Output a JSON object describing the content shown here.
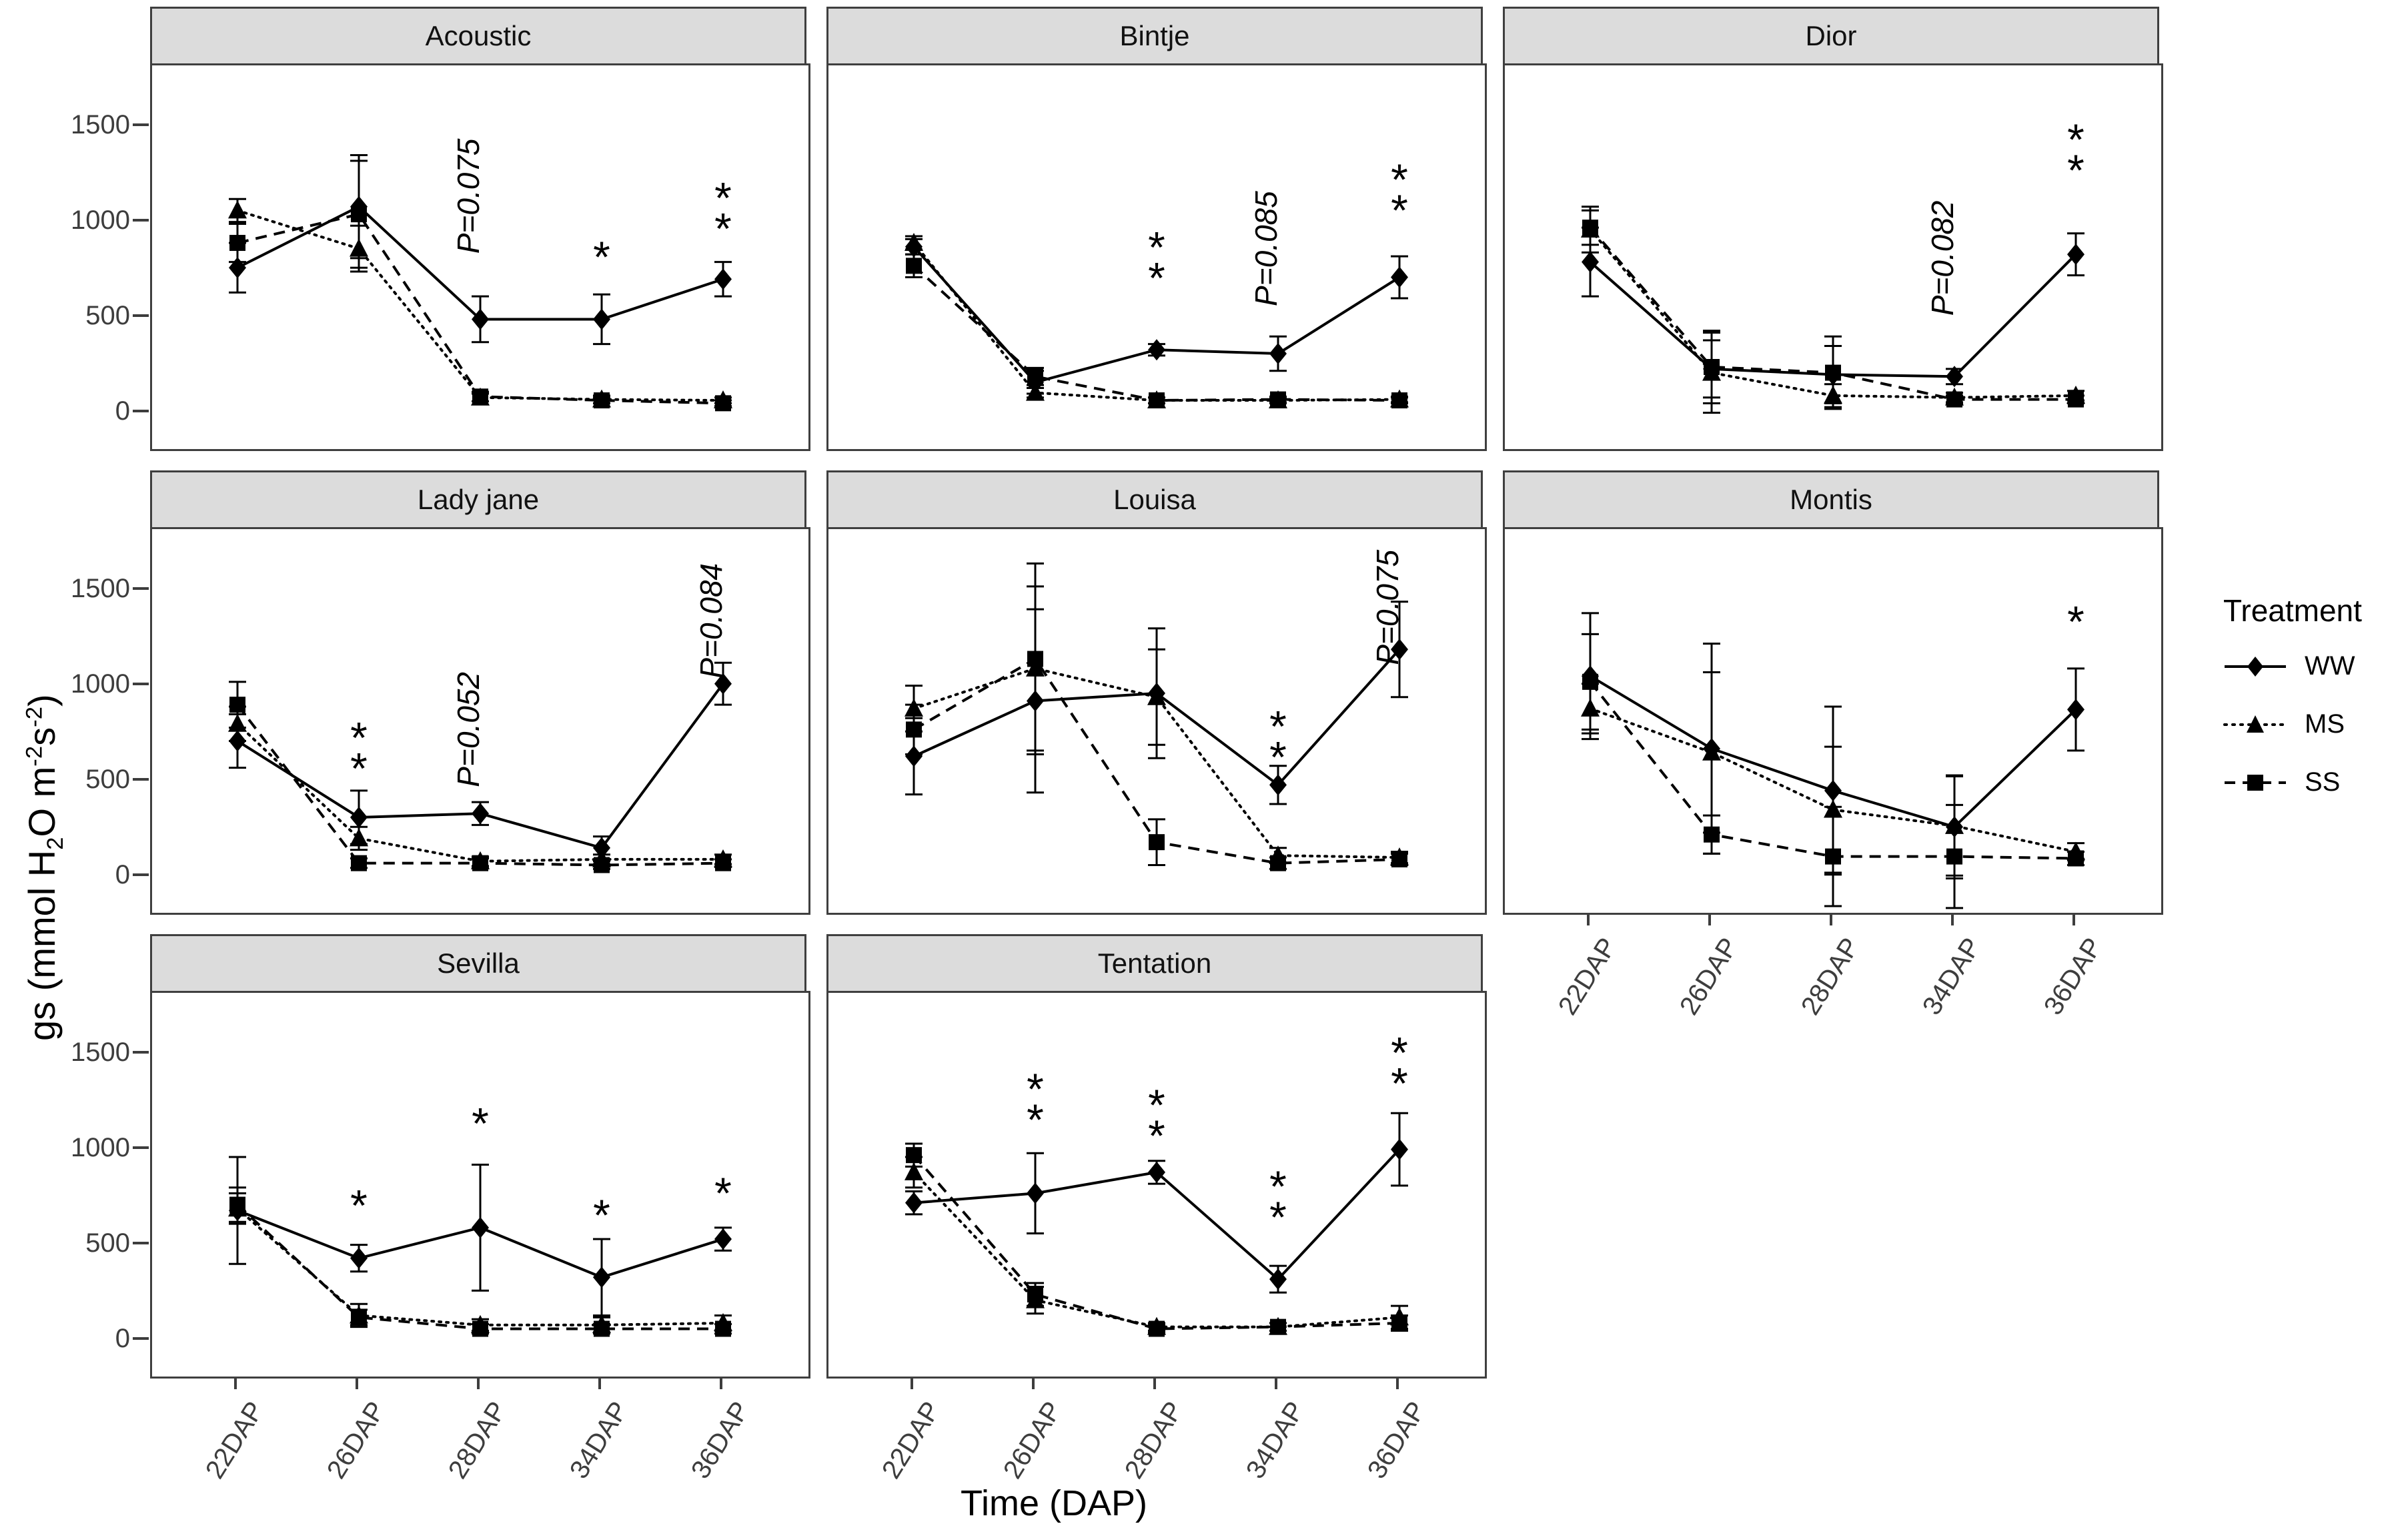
{
  "figure": {
    "xlabel": "Time (DAP)",
    "ylabel_parts": [
      {
        "t": "gs (mmol H"
      },
      {
        "t": "2",
        "pos": "sub"
      },
      {
        "t": "O m"
      },
      {
        "t": "-2",
        "pos": "sup"
      },
      {
        "t": "s"
      },
      {
        "t": "-2",
        "pos": "sup"
      },
      {
        "t": ")"
      }
    ],
    "style": {
      "strip_bg": "#dcdcdc",
      "border": "#3f3f3f",
      "axis_text": "#3d3d3d",
      "data_color": "#000000",
      "background": "#ffffff"
    }
  },
  "chart_data": {
    "type": "line",
    "title": "",
    "xlabel": "Time (DAP)",
    "ylabel": "gs (mmol H2O m-2s-2)",
    "x_categories": [
      "22DAP",
      "26DAP",
      "28DAP",
      "34DAP",
      "36DAP"
    ],
    "y_ticks": [
      0,
      500,
      1000,
      1500
    ],
    "ylim": [
      -200,
      1810
    ],
    "grid": "off",
    "legend": {
      "title": "Treatment",
      "position": "right",
      "entries": [
        {
          "label": "WW",
          "marker": "diamond",
          "line": "solid"
        },
        {
          "label": "MS",
          "marker": "triangle",
          "line": "dotted"
        },
        {
          "label": "SS",
          "marker": "square",
          "line": "dashed"
        }
      ]
    },
    "facets": [
      {
        "title": "Acoustic",
        "row": 0,
        "col": 0,
        "y_axis": true,
        "x_axis": false,
        "series": [
          {
            "name": "WW",
            "values": [
              750,
              1070,
              480,
              480,
              690
            ],
            "errors": [
              130,
              270,
              120,
              130,
              90
            ]
          },
          {
            "name": "MS",
            "values": [
              1050,
              850,
              70,
              60,
              55
            ],
            "errors": [
              60,
              120,
              20,
              20,
              15
            ]
          },
          {
            "name": "SS",
            "values": [
              880,
              1030,
              75,
              55,
              40
            ],
            "errors": [
              100,
              280,
              25,
              15,
              15
            ]
          }
        ],
        "annotations": [
          {
            "x": "28DAP",
            "value": 1125,
            "label": "P=0.075",
            "kind": "pvalue"
          },
          {
            "x": "34DAP",
            "value": 810,
            "label": "*",
            "kind": "stars"
          },
          {
            "x": "36DAP",
            "value": 1040,
            "label": "**",
            "kind": "stars"
          }
        ]
      },
      {
        "title": "Bintje",
        "row": 0,
        "col": 1,
        "y_axis": false,
        "x_axis": false,
        "series": [
          {
            "name": "WW",
            "values": [
              860,
              150,
              320,
              300,
              700
            ],
            "errors": [
              40,
              60,
              30,
              90,
              110
            ]
          },
          {
            "name": "MS",
            "values": [
              880,
              95,
              55,
              55,
              60
            ],
            "errors": [
              35,
              25,
              15,
              15,
              15
            ]
          },
          {
            "name": "SS",
            "values": [
              760,
              180,
              55,
              60,
              55
            ],
            "errors": [
              60,
              45,
              15,
              15,
              15
            ]
          }
        ],
        "annotations": [
          {
            "x": "28DAP",
            "value": 780,
            "label": "**",
            "kind": "stars"
          },
          {
            "x": "34DAP",
            "value": 850,
            "label": "P=0.085",
            "kind": "pvalue"
          },
          {
            "x": "36DAP",
            "value": 1135,
            "label": "**",
            "kind": "stars"
          }
        ]
      },
      {
        "title": "Dior",
        "row": 0,
        "col": 2,
        "y_axis": false,
        "x_axis": false,
        "series": [
          {
            "name": "WW",
            "values": [
              780,
              220,
              190,
              180,
              820
            ],
            "errors": [
              180,
              150,
              150,
              40,
              110
            ]
          },
          {
            "name": "MS",
            "values": [
              950,
              200,
              80,
              70,
              80
            ],
            "errors": [
              120,
              210,
              60,
              25,
              25
            ]
          },
          {
            "name": "SS",
            "values": [
              960,
              230,
              200,
              60,
              60
            ],
            "errors": [
              90,
              190,
              190,
              20,
              20
            ]
          }
        ],
        "annotations": [
          {
            "x": "34DAP",
            "value": 800,
            "label": "P=0.082",
            "kind": "pvalue"
          },
          {
            "x": "36DAP",
            "value": 1345,
            "label": "**",
            "kind": "stars"
          }
        ]
      },
      {
        "title": "Lady jane",
        "row": 1,
        "col": 0,
        "y_axis": true,
        "x_axis": false,
        "series": [
          {
            "name": "WW",
            "values": [
              700,
              300,
              320,
              140,
              1000
            ],
            "errors": [
              140,
              140,
              60,
              60,
              110
            ]
          },
          {
            "name": "MS",
            "values": [
              790,
              190,
              70,
              80,
              80
            ],
            "errors": [
              90,
              60,
              25,
              25,
              25
            ]
          },
          {
            "name": "SS",
            "values": [
              890,
              60,
              60,
              50,
              60
            ],
            "errors": [
              120,
              25,
              25,
              20,
              20
            ]
          }
        ],
        "annotations": [
          {
            "x": "26DAP",
            "value": 640,
            "label": "**",
            "kind": "stars"
          },
          {
            "x": "28DAP",
            "value": 760,
            "label": "P=0.052",
            "kind": "pvalue"
          },
          {
            "x": "36DAP",
            "value": 1330,
            "label": "P=0.084",
            "kind": "pvalue"
          }
        ]
      },
      {
        "title": "Louisa",
        "row": 1,
        "col": 1,
        "y_axis": false,
        "x_axis": false,
        "series": [
          {
            "name": "WW",
            "values": [
              620,
              910,
              950,
              470,
              1180
            ],
            "errors": [
              200,
              480,
              340,
              100,
              250
            ]
          },
          {
            "name": "MS",
            "values": [
              870,
              1080,
              930,
              100,
              90
            ],
            "errors": [
              120,
              430,
              250,
              40,
              30
            ]
          },
          {
            "name": "SS",
            "values": [
              760,
              1130,
              170,
              60,
              80
            ],
            "errors": [
              130,
              500,
              120,
              30,
              30
            ]
          }
        ],
        "annotations": [
          {
            "x": "34DAP",
            "value": 700,
            "label": "**",
            "kind": "stars"
          },
          {
            "x": "36DAP",
            "value": 1400,
            "label": "P=0.075",
            "kind": "pvalue"
          }
        ]
      },
      {
        "title": "Montis",
        "row": 1,
        "col": 2,
        "y_axis": false,
        "x_axis": true,
        "series": [
          {
            "name": "WW",
            "values": [
              1040,
              660,
              440,
              250,
              865
            ],
            "errors": [
              330,
              550,
              440,
              270,
              215
            ]
          },
          {
            "name": "MS",
            "values": [
              870,
              640,
              340,
              255,
              120
            ],
            "errors": [
              130,
              420,
              330,
              260,
              45
            ]
          },
          {
            "name": "SS",
            "values": [
              1010,
              210,
              95,
              95,
              85
            ],
            "errors": [
              250,
              100,
              260,
              270,
              35
            ]
          }
        ],
        "annotations": [
          {
            "x": "36DAP",
            "value": 1330,
            "label": "*",
            "kind": "stars"
          }
        ]
      },
      {
        "title": "Sevilla",
        "row": 2,
        "col": 0,
        "y_axis": true,
        "x_axis": true,
        "series": [
          {
            "name": "WW",
            "values": [
              670,
              420,
              580,
              320,
              520
            ],
            "errors": [
              280,
              70,
              330,
              200,
              60
            ]
          },
          {
            "name": "MS",
            "values": [
              680,
              120,
              70,
              70,
              80
            ],
            "errors": [
              80,
              60,
              30,
              40,
              40
            ]
          },
          {
            "name": "SS",
            "values": [
              700,
              110,
              50,
              50,
              50
            ],
            "errors": [
              90,
              40,
              25,
              25,
              25
            ]
          }
        ],
        "annotations": [
          {
            "x": "26DAP",
            "value": 700,
            "label": "*",
            "kind": "stars"
          },
          {
            "x": "28DAP",
            "value": 1130,
            "label": "*",
            "kind": "stars"
          },
          {
            "x": "34DAP",
            "value": 650,
            "label": "*",
            "kind": "stars"
          },
          {
            "x": "36DAP",
            "value": 765,
            "label": "*",
            "kind": "stars"
          }
        ]
      },
      {
        "title": "Tentation",
        "row": 2,
        "col": 1,
        "y_axis": false,
        "x_axis": true,
        "series": [
          {
            "name": "WW",
            "values": [
              710,
              760,
              870,
              310,
              990
            ],
            "errors": [
              60,
              210,
              60,
              70,
              190
            ]
          },
          {
            "name": "MS",
            "values": [
              870,
              200,
              60,
              60,
              110
            ],
            "errors": [
              80,
              70,
              20,
              20,
              60
            ]
          },
          {
            "name": "SS",
            "values": [
              960,
              230,
              50,
              60,
              80
            ],
            "errors": [
              60,
              60,
              20,
              20,
              40
            ]
          }
        ],
        "annotations": [
          {
            "x": "26DAP",
            "value": 1230,
            "label": "**",
            "kind": "stars"
          },
          {
            "x": "28DAP",
            "value": 1145,
            "label": "**",
            "kind": "stars"
          },
          {
            "x": "34DAP",
            "value": 720,
            "label": "**",
            "kind": "stars"
          },
          {
            "x": "36DAP",
            "value": 1420,
            "label": "**",
            "kind": "stars"
          }
        ]
      }
    ]
  }
}
